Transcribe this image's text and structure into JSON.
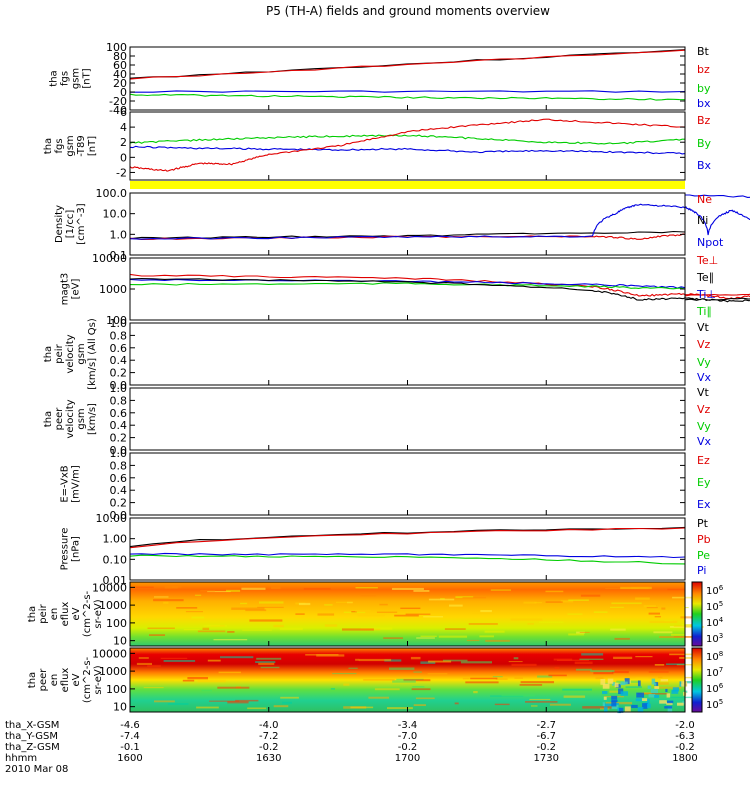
{
  "title": "P5 (TH-A) fields and ground moments overview",
  "colors": {
    "black": "#000000",
    "red": "#e00000",
    "green": "#00cc00",
    "blue": "#0000e0",
    "yellow": "#ffff00"
  },
  "chart_data": {
    "type": "line",
    "xaxis": {
      "x": [
        1600,
        1630,
        1700,
        1730,
        1800
      ],
      "hhmm_labels": [
        "1600",
        "1630",
        "1700",
        "1730",
        "1800"
      ],
      "row_labels": [
        "tha_X-GSM",
        "tha_Y-GSM",
        "tha_Z-GSM",
        "hhmm"
      ],
      "X": [
        "-4.6",
        "-4.0",
        "-3.4",
        "-2.7",
        "-2.0"
      ],
      "Y": [
        "-7.4",
        "-7.2",
        "-7.0",
        "-6.7",
        "-6.3"
      ],
      "Z": [
        "-0.1",
        "-0.2",
        "-0.2",
        "-0.2",
        "-0.2"
      ],
      "date": "2010 Mar 08"
    },
    "panels": [
      {
        "ylabel": [
          "tha",
          "fgs",
          "gsm",
          "[nT]"
        ],
        "yticks": [
          "100",
          "80",
          "60",
          "40",
          "20",
          "0",
          "-20",
          "-40"
        ],
        "ylim": [
          -40,
          100
        ],
        "legend": [
          {
            "text": "Bt",
            "color": "#000000"
          },
          {
            "text": "bz",
            "color": "#e00000"
          },
          {
            "text": "by",
            "color": "#00cc00"
          },
          {
            "text": "bx",
            "color": "#0000e0"
          }
        ],
        "series": [
          {
            "name": "Bt",
            "color": "#000000",
            "x": [
              1600,
              1800
            ],
            "y": [
              30,
              94
            ]
          },
          {
            "name": "bz",
            "color": "#e00000",
            "x": [
              1600,
              1800
            ],
            "y": [
              29,
              93
            ]
          },
          {
            "name": "bx",
            "color": "#0000e0",
            "x": [
              1600,
              1800
            ],
            "y": [
              1,
              1
            ]
          },
          {
            "name": "by",
            "color": "#00cc00",
            "x": [
              1600,
              1630,
              1700,
              1730,
              1800
            ],
            "y": [
              -6,
              -9,
              -12,
              -14,
              -17
            ]
          }
        ]
      },
      {
        "ylabel": [
          "tha",
          "fgs",
          "gsm",
          "-T89",
          "[nT]"
        ],
        "yticks": [
          "6",
          "4",
          "2",
          "0",
          "-2"
        ],
        "ylim": [
          -3,
          6
        ],
        "legend": [
          {
            "text": "Bz",
            "color": "#e00000"
          },
          {
            "text": "By",
            "color": "#00cc00"
          },
          {
            "text": "Bx",
            "color": "#0000e0"
          }
        ],
        "series": [
          {
            "name": "By",
            "color": "#00cc00",
            "x": [
              1600,
              1615,
              1630,
              1645,
              1700,
              1715,
              1730,
              1745,
              1800
            ],
            "y": [
              1.9,
              2.3,
              2.6,
              2.8,
              2.9,
              2.5,
              2.0,
              1.8,
              2.4
            ]
          },
          {
            "name": "Bx",
            "color": "#0000e0",
            "x": [
              1600,
              1615,
              1630,
              1645,
              1700,
              1715,
              1730,
              1745,
              1800
            ],
            "y": [
              1.4,
              1.2,
              1.1,
              1.0,
              1.1,
              0.7,
              0.9,
              0.7,
              0.5
            ]
          },
          {
            "name": "Bz",
            "color": "#e00000",
            "x": [
              1600,
              1608,
              1615,
              1622,
              1630,
              1645,
              1700,
              1715,
              1730,
              1745,
              1800
            ],
            "y": [
              -1.3,
              -1.8,
              -0.8,
              -0.9,
              0.4,
              1.5,
              3.4,
              4.3,
              5.0,
              4.5,
              4.0
            ]
          }
        ]
      },
      {
        "ylabel": [
          "Density",
          "[1/cc]",
          "[cm^-3]"
        ],
        "yticks": [
          "100.0",
          "10.0",
          "1.0",
          "0.1"
        ],
        "ylim": [
          0.1,
          100
        ],
        "scale": "log",
        "legend": [
          {
            "text": "Ne",
            "color": "#e00000"
          },
          {
            "text": "Ni",
            "color": "#000000"
          },
          {
            "text": "Npot",
            "color": "#0000e0"
          }
        ],
        "series": [
          {
            "name": "Ni",
            "color": "#000000",
            "x": [
              1600,
              1700,
              1800
            ],
            "y": [
              0.65,
              0.85,
              1.3
            ]
          },
          {
            "name": "Ne",
            "color": "#e00000",
            "x": [
              1600,
              1700,
              1740,
              1750,
              1800
            ],
            "y": [
              0.6,
              0.75,
              0.8,
              0.6,
              1.0
            ]
          },
          {
            "name": "Npot",
            "color": "#0000e0",
            "x": [
              1600,
              1700,
              1740,
              1745,
              1750,
              1760,
              1765,
              1770,
              1775,
              1780,
              1785,
              1800
            ],
            "y": [
              0.6,
              0.75,
              0.8,
              10,
              28,
              20,
              1.0,
              14,
              3,
              40,
              55,
              80
            ]
          }
        ]
      },
      {
        "ylabel": [
          "magt3",
          "[eV]"
        ],
        "yticks": [
          "10000",
          "1000",
          "100"
        ],
        "ylim": [
          100,
          10000
        ],
        "scale": "log",
        "legend": [
          {
            "text": "Te⊥",
            "color": "#e00000"
          },
          {
            "text": "Te∥",
            "color": "#000000"
          },
          {
            "text": "Ti⊥",
            "color": "#0000e0"
          },
          {
            "text": "Ti∥",
            "color": "#00cc00"
          }
        ],
        "series": [
          {
            "name": "Te⊥",
            "color": "#e00000",
            "x": [
              1600,
              1700,
              1740,
              1750,
              1760,
              1770,
              1780,
              1790,
              1800
            ],
            "y": [
              2800,
              2200,
              1200,
              600,
              700,
              500,
              700,
              800,
              600
            ]
          },
          {
            "name": "Ti⊥",
            "color": "#0000e0",
            "x": [
              1600,
              1700,
              1740,
              1800
            ],
            "y": [
              2000,
              1800,
              1400,
              1100
            ]
          },
          {
            "name": "Ti∥",
            "color": "#00cc00",
            "x": [
              1600,
              1700,
              1740,
              1800
            ],
            "y": [
              1400,
              1500,
              1200,
              1000
            ]
          },
          {
            "name": "Te∥",
            "color": "#000000",
            "x": [
              1600,
              1700,
              1740,
              1750,
              1760,
              1770,
              1780,
              1790,
              1800
            ],
            "y": [
              2200,
              1700,
              900,
              450,
              500,
              400,
              500,
              550,
              450
            ]
          }
        ]
      },
      {
        "ylabel": [
          "tha",
          "peir",
          "velocity",
          "gsm",
          "[km/s] (All Qs)"
        ],
        "yticks": [
          "1.0",
          "0.8",
          "0.6",
          "0.4",
          "0.2",
          "0.0"
        ],
        "ylim": [
          0,
          1
        ],
        "legend": [
          {
            "text": "Vt",
            "color": "#000000"
          },
          {
            "text": "Vz",
            "color": "#e00000"
          },
          {
            "text": "Vy",
            "color": "#00cc00"
          },
          {
            "text": "Vx",
            "color": "#0000e0"
          }
        ],
        "series": []
      },
      {
        "ylabel": [
          "tha",
          "peer",
          "velocity",
          "gsm",
          "[km/s]"
        ],
        "yticks": [
          "1.0",
          "0.8",
          "0.6",
          "0.4",
          "0.2",
          "0.0"
        ],
        "ylim": [
          0,
          1
        ],
        "legend": [
          {
            "text": "Vt",
            "color": "#000000"
          },
          {
            "text": "Vz",
            "color": "#e00000"
          },
          {
            "text": "Vy",
            "color": "#00cc00"
          },
          {
            "text": "Vx",
            "color": "#0000e0"
          }
        ],
        "series": []
      },
      {
        "ylabel": [
          "E=-VxB",
          "[mV/m]"
        ],
        "yticks": [
          "1.0",
          "0.8",
          "0.6",
          "0.4",
          "0.2",
          "0.0"
        ],
        "ylim": [
          0,
          1
        ],
        "legend": [
          {
            "text": "Ez",
            "color": "#e00000"
          },
          {
            "text": "Ey",
            "color": "#00cc00"
          },
          {
            "text": "Ex",
            "color": "#0000e0"
          }
        ],
        "series": []
      },
      {
        "ylabel": [
          "Pressure",
          "[nPa]"
        ],
        "yticks": [
          "10.00",
          "1.00",
          "0.10",
          "0.01"
        ],
        "ylim": [
          0.01,
          10
        ],
        "scale": "log",
        "legend": [
          {
            "text": "Pt",
            "color": "#000000"
          },
          {
            "text": "Pb",
            "color": "#e00000"
          },
          {
            "text": "Pe",
            "color": "#00cc00"
          },
          {
            "text": "Pi",
            "color": "#0000e0"
          }
        ],
        "series": [
          {
            "name": "Pt",
            "color": "#000000",
            "x": [
              1600,
              1800
            ],
            "y": [
              0.45,
              3.5
            ]
          },
          {
            "name": "Pb",
            "color": "#e00000",
            "x": [
              1600,
              1800
            ],
            "y": [
              0.35,
              3.3
            ]
          },
          {
            "name": "Pi",
            "color": "#0000e0",
            "x": [
              1600,
              1700,
              1800
            ],
            "y": [
              0.18,
              0.17,
              0.13
            ]
          },
          {
            "name": "Pe",
            "color": "#00cc00",
            "x": [
              1600,
              1700,
              1800
            ],
            "y": [
              0.15,
              0.13,
              0.06
            ]
          }
        ]
      }
    ],
    "spectrograms": [
      {
        "type": "heatmap",
        "ylabel": [
          "tha",
          "peir",
          "en",
          "eflux",
          "eV",
          "(cm^2-s-",
          "sr-eV)"
        ],
        "yticks": [
          "10000",
          "1000",
          "100",
          "10"
        ],
        "ylim": [
          5,
          20000
        ],
        "scale": "log",
        "colorbar": {
          "range": [
            100000,
            1000000
          ],
          "exponents": [
            "6",
            "5",
            "4",
            "3"
          ]
        }
      },
      {
        "type": "heatmap",
        "ylabel": [
          "tha",
          "peer",
          "en",
          "eflux",
          "eV",
          "(cm^2-s-",
          "sr-eV)"
        ],
        "yticks": [
          "10000",
          "1000",
          "100",
          "10"
        ],
        "ylim": [
          5,
          20000
        ],
        "scale": "log",
        "colorbar": {
          "range": [
            100000,
            100000000
          ],
          "exponents": [
            "8",
            "7",
            "6",
            "5"
          ]
        }
      }
    ]
  }
}
